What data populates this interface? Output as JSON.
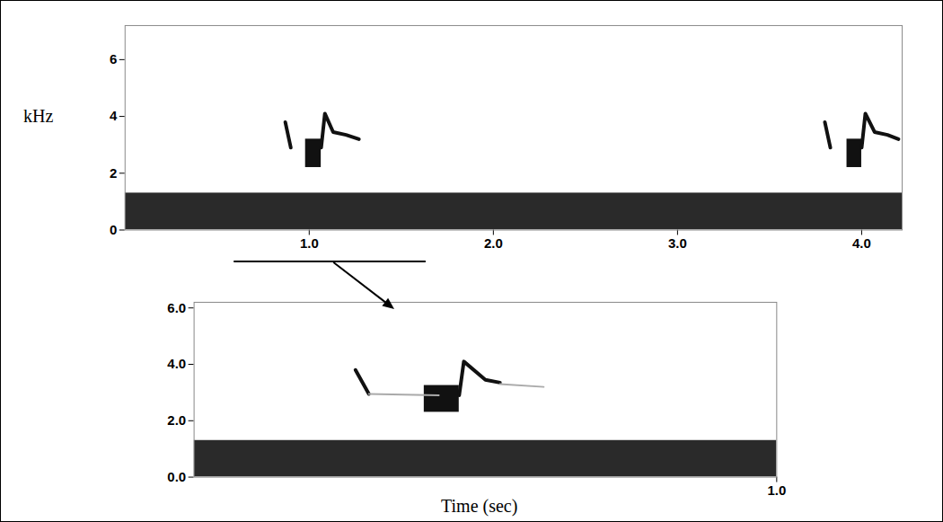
{
  "chart_data": [
    {
      "type": "spectrogram",
      "ylabel": "kHz",
      "xlim": [
        0,
        4.22
      ],
      "xticks": [
        1,
        2,
        3,
        4
      ],
      "ylim": [
        0,
        7.2
      ],
      "yticks": [
        0,
        2,
        4,
        6
      ],
      "color": "#111111",
      "noise_band": [
        0,
        1.3
      ],
      "notes": [
        {
          "x": [
            0.87,
            0.9
          ],
          "y": [
            3.8,
            2.9
          ]
        },
        {
          "x": [
            1.065,
            1.085,
            1.13,
            1.2,
            1.27
          ],
          "y": [
            2.9,
            4.1,
            3.45,
            3.35,
            3.2
          ]
        },
        {
          "x": [
            3.8,
            3.83
          ],
          "y": [
            3.8,
            2.9
          ]
        },
        {
          "x": [
            4.0,
            4.02,
            4.07,
            4.14,
            4.2
          ],
          "y": [
            2.9,
            4.1,
            3.45,
            3.35,
            3.2
          ]
        }
      ],
      "blocks": [
        {
          "x": [
            0.98,
            1.065
          ],
          "y": [
            2.2,
            3.2
          ]
        },
        {
          "x": [
            3.92,
            4.0
          ],
          "y": [
            2.2,
            3.2
          ]
        }
      ],
      "zoom_range": [
        0.59,
        1.63
      ]
    },
    {
      "type": "spectrogram",
      "xlabel": "Time (sec)",
      "xlim": [
        0,
        1
      ],
      "xticks": [
        1
      ],
      "ylim": [
        0,
        6.2
      ],
      "yticks": [
        0,
        2,
        4,
        6
      ],
      "color": "#111111",
      "noise_band": [
        0,
        1.3
      ],
      "notes": [
        {
          "x": [
            0.277,
            0.3
          ],
          "y": [
            3.8,
            2.95
          ]
        },
        {
          "x": [
            0.3,
            0.42
          ],
          "y": [
            2.95,
            2.9
          ],
          "color": "#aaaaaa"
        },
        {
          "x": [
            0.455,
            0.463,
            0.5,
            0.525
          ],
          "y": [
            2.9,
            4.1,
            3.45,
            3.35
          ]
        },
        {
          "x": [
            0.525,
            0.6
          ],
          "y": [
            3.3,
            3.2
          ],
          "color": "#aaaaaa"
        }
      ],
      "blocks": [
        {
          "x": [
            0.395,
            0.455
          ],
          "y": [
            2.3,
            3.25
          ]
        }
      ]
    }
  ]
}
